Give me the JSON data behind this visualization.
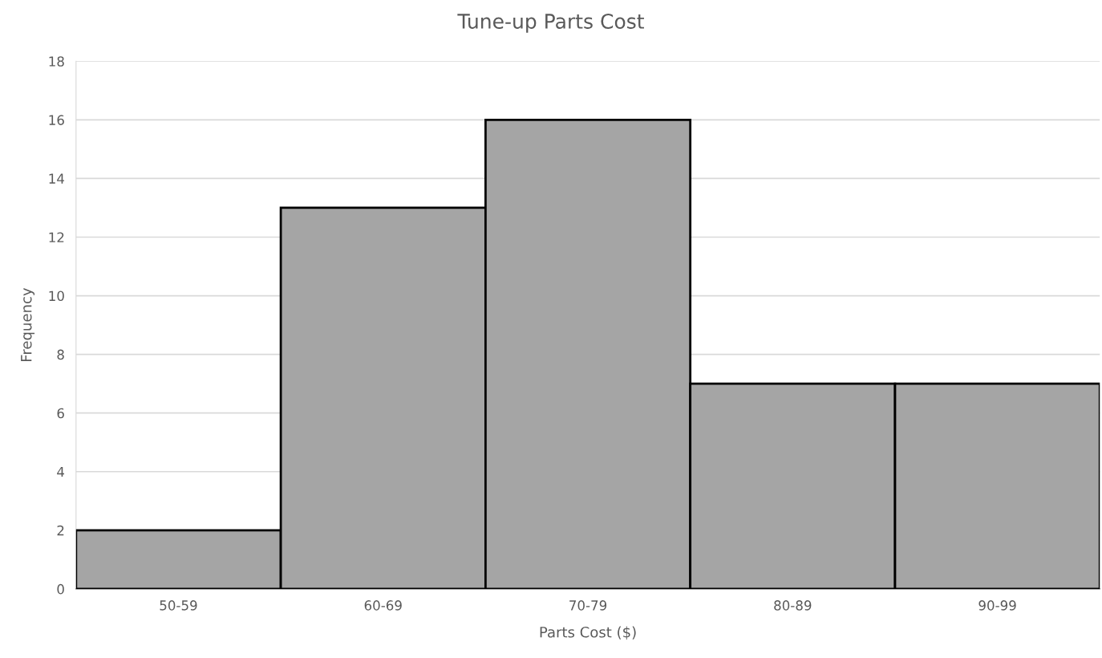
{
  "chart_data": {
    "type": "bar",
    "title": "Tune-up Parts Cost",
    "xlabel": "Parts Cost ($)",
    "ylabel": "Frequency",
    "categories": [
      "50-59",
      "60-69",
      "70-79",
      "80-89",
      "90-99"
    ],
    "values": [
      2,
      13,
      16,
      7,
      7
    ],
    "color": "#a5a5a5",
    "ylim": [
      0,
      18
    ],
    "yticks": [
      0,
      2,
      4,
      6,
      8,
      10,
      12,
      14,
      16,
      18
    ],
    "grid": "y",
    "legend": false
  }
}
